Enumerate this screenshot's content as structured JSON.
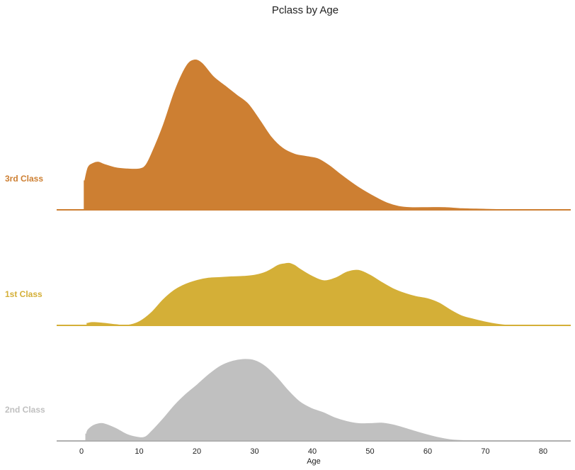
{
  "chart_data": {
    "type": "area",
    "title": "Pclass by Age",
    "xlabel": "Age",
    "ylabel": "",
    "xlim": [
      -5,
      85
    ],
    "xticks": [
      0,
      10,
      20,
      30,
      40,
      50,
      60,
      70,
      80
    ],
    "grid": false,
    "legend": "none",
    "series": [
      {
        "name": "3rd Class",
        "color": "#cd7f32",
        "x": [
          0.4,
          1,
          2,
          3,
          4,
          6,
          8,
          10,
          11,
          12,
          14,
          16,
          18,
          19.5,
          21,
          23,
          25,
          27,
          29,
          31,
          33,
          35,
          37,
          39,
          41,
          43,
          45,
          48,
          51,
          53,
          55,
          57,
          60,
          63,
          66,
          70,
          74,
          78,
          85
        ],
        "y": [
          0.026,
          0.038,
          0.042,
          0.043,
          0.041,
          0.038,
          0.037,
          0.037,
          0.04,
          0.05,
          0.075,
          0.105,
          0.127,
          0.133,
          0.13,
          0.118,
          0.11,
          0.102,
          0.094,
          0.08,
          0.065,
          0.055,
          0.05,
          0.048,
          0.046,
          0.04,
          0.032,
          0.021,
          0.012,
          0.007,
          0.004,
          0.003,
          0.003,
          0.003,
          0.002,
          0.0015,
          0.001,
          0.0007,
          0.0005
        ]
      },
      {
        "name": "1st Class",
        "color": "#d4af37",
        "x": [
          0.9,
          2,
          4,
          6,
          8,
          10,
          12,
          14,
          16,
          18,
          20,
          22,
          24,
          26,
          28,
          30,
          32,
          34,
          35,
          36,
          37,
          38,
          40,
          42,
          44,
          46,
          48,
          50,
          52,
          54,
          56,
          58,
          60,
          62,
          64,
          66,
          68,
          70,
          72,
          74,
          76,
          78,
          80
        ],
        "y": [
          0.0026,
          0.0036,
          0.0028,
          0.0016,
          0.0011,
          0.0043,
          0.012,
          0.0232,
          0.0318,
          0.0372,
          0.0406,
          0.0426,
          0.0432,
          0.0438,
          0.0442,
          0.0452,
          0.0482,
          0.0538,
          0.0551,
          0.0557,
          0.0538,
          0.0503,
          0.0443,
          0.0404,
          0.0428,
          0.048,
          0.0495,
          0.0454,
          0.0391,
          0.0334,
          0.0293,
          0.0264,
          0.0245,
          0.0207,
          0.0145,
          0.0092,
          0.0064,
          0.004,
          0.0021,
          0.001,
          0.001,
          0.001,
          0.001
        ]
      },
      {
        "name": "2nd Class",
        "color": "#c0c0c0",
        "x": [
          0.67,
          1,
          2,
          3,
          4,
          6,
          8,
          10,
          11,
          12,
          14,
          16,
          18,
          20,
          22,
          24,
          26,
          28,
          30,
          32,
          34,
          36,
          38,
          40,
          42,
          44,
          46,
          48,
          50,
          52,
          54,
          56,
          58,
          60,
          62,
          64,
          66,
          68,
          70.5
        ],
        "y": [
          0.0065,
          0.0105,
          0.0145,
          0.0162,
          0.016,
          0.012,
          0.0065,
          0.004,
          0.0045,
          0.009,
          0.02,
          0.032,
          0.042,
          0.0505,
          0.0595,
          0.0668,
          0.071,
          0.0728,
          0.0719,
          0.0663,
          0.0565,
          0.0448,
          0.035,
          0.0294,
          0.0258,
          0.0212,
          0.0181,
          0.0163,
          0.0163,
          0.0167,
          0.0151,
          0.0123,
          0.0092,
          0.0063,
          0.0038,
          0.002,
          0.0013,
          0.0011,
          0.0009
        ]
      }
    ]
  }
}
